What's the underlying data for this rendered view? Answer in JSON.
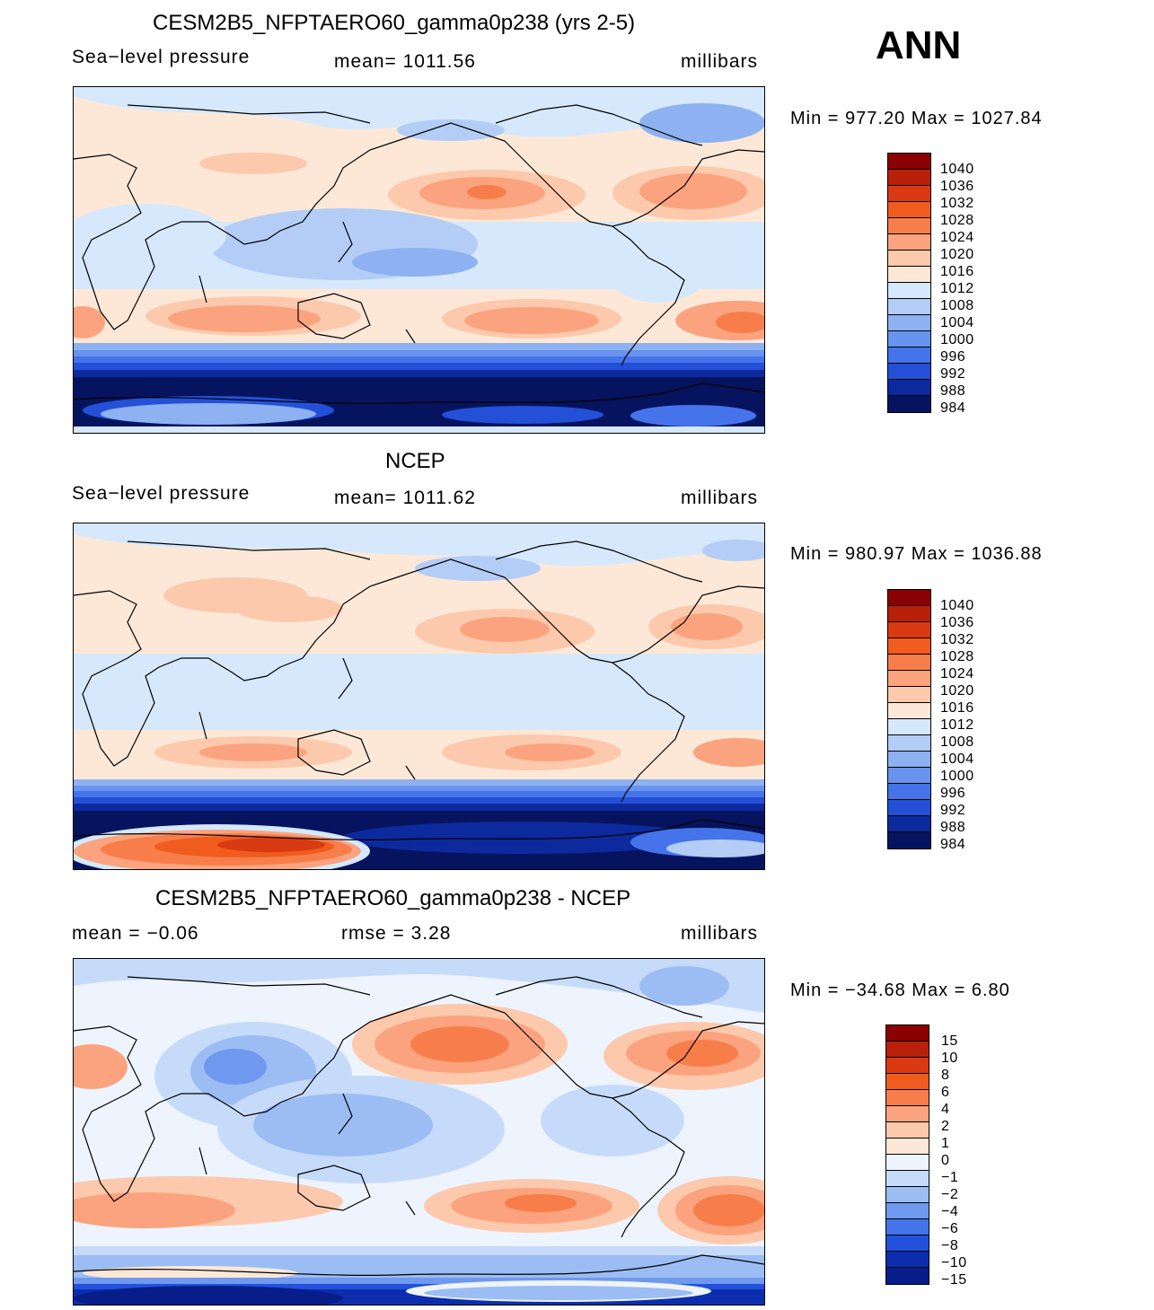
{
  "season": "ANN",
  "panels": [
    {
      "title": "CESM2B5_NFPTAERO60_gamma0p238 (yrs 2-5)",
      "left_label": "Sea−level  pressure",
      "center_label": "mean=  1011.56",
      "units": "millibars",
      "minmax": "Min  =  977.20  Max  =  1027.84",
      "map_name": "model-slp-map"
    },
    {
      "title": "NCEP",
      "left_label": "Sea−level  pressure",
      "center_label": "mean=  1011.62",
      "units": "millibars",
      "minmax": "Min  =  980.97  Max  =  1036.88",
      "map_name": "ncep-slp-map"
    },
    {
      "title": "CESM2B5_NFPTAERO60_gamma0p238 - NCEP",
      "left_label": "mean  =    −0.06",
      "center_label": "rmse  =      3.28",
      "units": "millibars",
      "minmax": "Min  =  −34.68  Max  =      6.80",
      "map_name": "difference-slp-map"
    }
  ],
  "colorbars": {
    "slp_levels": [
      "1040",
      "1036",
      "1032",
      "1028",
      "1024",
      "1020",
      "1016",
      "1012",
      "1008",
      "1004",
      "1000",
      "996",
      "992",
      "988",
      "984"
    ],
    "slp_colors": [
      "#8b0000",
      "#b8200a",
      "#d93a12",
      "#ef5c1e",
      "#f77e4a",
      "#fba37e",
      "#fcc9ad",
      "#fde8d8",
      "#d6e8fb",
      "#b3cdf6",
      "#8db1f1",
      "#6893ee",
      "#4573ea",
      "#2450d8",
      "#0c2a9e",
      "#06145f"
    ],
    "diff_levels": [
      "15",
      "10",
      "8",
      "6",
      "4",
      "2",
      "1",
      "0",
      "−1",
      "−2",
      "−4",
      "−6",
      "−8",
      "−10",
      "−15"
    ],
    "diff_colors": [
      "#8b0000",
      "#b8200a",
      "#d93a12",
      "#ef5c1e",
      "#f77e4a",
      "#fba37e",
      "#fcc9ad",
      "#fde8d8",
      "#eef4fd",
      "#c6dbf9",
      "#9cbdf3",
      "#6f99ee",
      "#4574ea",
      "#2350dc",
      "#0c2eae",
      "#061d8a"
    ]
  }
}
